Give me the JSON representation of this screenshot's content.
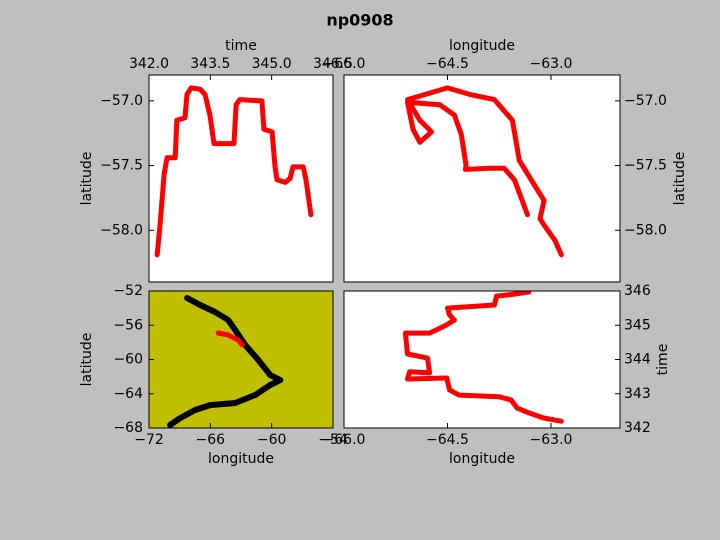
{
  "title": "np0908",
  "chart_data": [
    {
      "type": "line",
      "xlabel": "time",
      "ylabel": "latitude",
      "xaxis": "top",
      "yaxis": "left",
      "facecolor": "#ffffff",
      "xlim": [
        342.0,
        346.5
      ],
      "ylim": [
        -58.4,
        -56.8
      ],
      "xticks": [
        {
          "value": 342.0,
          "label": "342.0"
        },
        {
          "value": 343.5,
          "label": "343.5"
        },
        {
          "value": 345.0,
          "label": "345.0"
        },
        {
          "value": 346.5,
          "label": "346.5"
        }
      ],
      "yticks": [
        {
          "value": -57.0,
          "label": "−57.0"
        },
        {
          "value": -57.5,
          "label": "−57.5"
        },
        {
          "value": -58.0,
          "label": "−58.0"
        }
      ],
      "series": [
        {
          "color": "#ff0000",
          "x": [
            342.2,
            342.27,
            342.37,
            342.44,
            342.64,
            342.68,
            342.88,
            342.93,
            343.03,
            343.25,
            343.37,
            343.49,
            343.59,
            344.08,
            344.13,
            344.22,
            344.76,
            344.81,
            345.01,
            345.08,
            345.13,
            345.33,
            345.45,
            345.52,
            345.77,
            345.84,
            345.96
          ],
          "values": [
            -58.19,
            -57.96,
            -57.57,
            -57.44,
            -57.44,
            -57.15,
            -57.13,
            -56.95,
            -56.9,
            -56.91,
            -56.95,
            -57.11,
            -57.33,
            -57.33,
            -57.03,
            -56.99,
            -57.0,
            -57.22,
            -57.24,
            -57.5,
            -57.61,
            -57.63,
            -57.6,
            -57.51,
            -57.51,
            -57.61,
            -57.88
          ]
        }
      ]
    },
    {
      "type": "line",
      "xlabel": "longitude",
      "ylabel": "latitude",
      "xaxis": "top",
      "yaxis": "right",
      "facecolor": "#ffffff",
      "xlim": [
        -66.0,
        -62.0
      ],
      "ylim": [
        -58.4,
        -56.8
      ],
      "xticks": [
        {
          "value": -66.0,
          "label": "−66.0"
        },
        {
          "value": -64.5,
          "label": "−64.5"
        },
        {
          "value": -63.0,
          "label": "−63.0"
        }
      ],
      "yticks": [
        {
          "value": -57.0,
          "label": "−57.0"
        },
        {
          "value": -57.5,
          "label": "−57.5"
        },
        {
          "value": -58.0,
          "label": "−58.0"
        }
      ],
      "series": [
        {
          "color": "#ff0000",
          "x": [
            -62.85,
            -62.94,
            -63.1,
            -63.16,
            -63.1,
            -63.24,
            -63.46,
            -63.56,
            -63.82,
            -64.18,
            -64.5,
            -65.08,
            -64.9,
            -64.73,
            -64.9,
            -65.0,
            -65.08,
            -64.61,
            -64.4,
            -64.3,
            -64.23,
            -64.24,
            -63.89,
            -63.68,
            -63.53,
            -63.34
          ],
          "values": [
            -58.19,
            -58.08,
            -57.96,
            -57.91,
            -57.77,
            -57.65,
            -57.46,
            -57.15,
            -56.99,
            -56.95,
            -56.9,
            -56.99,
            -57.15,
            -57.24,
            -57.32,
            -57.22,
            -57.01,
            -57.03,
            -57.11,
            -57.26,
            -57.5,
            -57.53,
            -57.52,
            -57.52,
            -57.61,
            -57.88
          ]
        }
      ]
    },
    {
      "type": "line",
      "xlabel": "longitude",
      "ylabel": "latitude",
      "xaxis": "bottom",
      "yaxis": "left",
      "facecolor": "#bfbf00",
      "xlim": [
        -72,
        -54
      ],
      "ylim": [
        -68,
        -52
      ],
      "xticks": [
        {
          "value": -72,
          "label": "−72"
        },
        {
          "value": -66,
          "label": "−66"
        },
        {
          "value": -60,
          "label": "−60"
        },
        {
          "value": -54,
          "label": "−54"
        }
      ],
      "yticks": [
        {
          "value": -52,
          "label": "−52"
        },
        {
          "value": -56,
          "label": "−56"
        },
        {
          "value": -60,
          "label": "−60"
        },
        {
          "value": -64,
          "label": "−64"
        },
        {
          "value": -68,
          "label": "−68"
        }
      ],
      "series": [
        {
          "color": "#000000",
          "x": [
            -68.27,
            -67.0,
            -65.53,
            -64.25,
            -63.57,
            -62.59,
            -61.31,
            -60.14,
            -59.16,
            -60.14,
            -61.61,
            -63.57,
            -66.02,
            -67.49,
            -68.96,
            -69.94
          ],
          "values": [
            -52.82,
            -53.64,
            -54.45,
            -55.39,
            -56.56,
            -58.31,
            -60.06,
            -61.81,
            -62.4,
            -62.98,
            -64.15,
            -65.08,
            -65.32,
            -65.9,
            -66.84,
            -67.65
          ]
        },
        {
          "color": "#ff0000",
          "x": [
            -65.23,
            -64.25,
            -63.27,
            -62.88
          ],
          "values": [
            -56.91,
            -57.14,
            -57.72,
            -58.31
          ]
        }
      ]
    },
    {
      "type": "line",
      "xlabel": "longitude",
      "ylabel": "time",
      "xaxis": "bottom",
      "yaxis": "right",
      "facecolor": "#ffffff",
      "xlim": [
        -66.0,
        -62.0
      ],
      "ylim": [
        342,
        346
      ],
      "xticks": [
        {
          "value": -66.0,
          "label": "−66.0"
        },
        {
          "value": -64.5,
          "label": "−64.5"
        },
        {
          "value": -63.0,
          "label": "−63.0"
        }
      ],
      "yticks": [
        342,
        343,
        344,
        345,
        346
      ],
      "series": [
        {
          "color": "#ff0000",
          "x": [
            -62.85,
            -63.1,
            -63.32,
            -63.49,
            -63.58,
            -63.75,
            -64.33,
            -64.47,
            -64.51,
            -65.08,
            -65.05,
            -64.76,
            -64.79,
            -65.08,
            -65.11,
            -64.76,
            -64.54,
            -64.4,
            -64.47,
            -64.5,
            -63.82,
            -63.79,
            -63.53,
            -63.32
          ],
          "values": [
            342.2,
            342.29,
            342.44,
            342.58,
            342.82,
            342.91,
            342.96,
            343.11,
            343.46,
            343.43,
            343.64,
            343.61,
            344.04,
            344.16,
            344.77,
            344.77,
            344.98,
            345.15,
            345.3,
            345.5,
            345.59,
            345.85,
            345.91,
            345.97
          ]
        }
      ]
    }
  ]
}
